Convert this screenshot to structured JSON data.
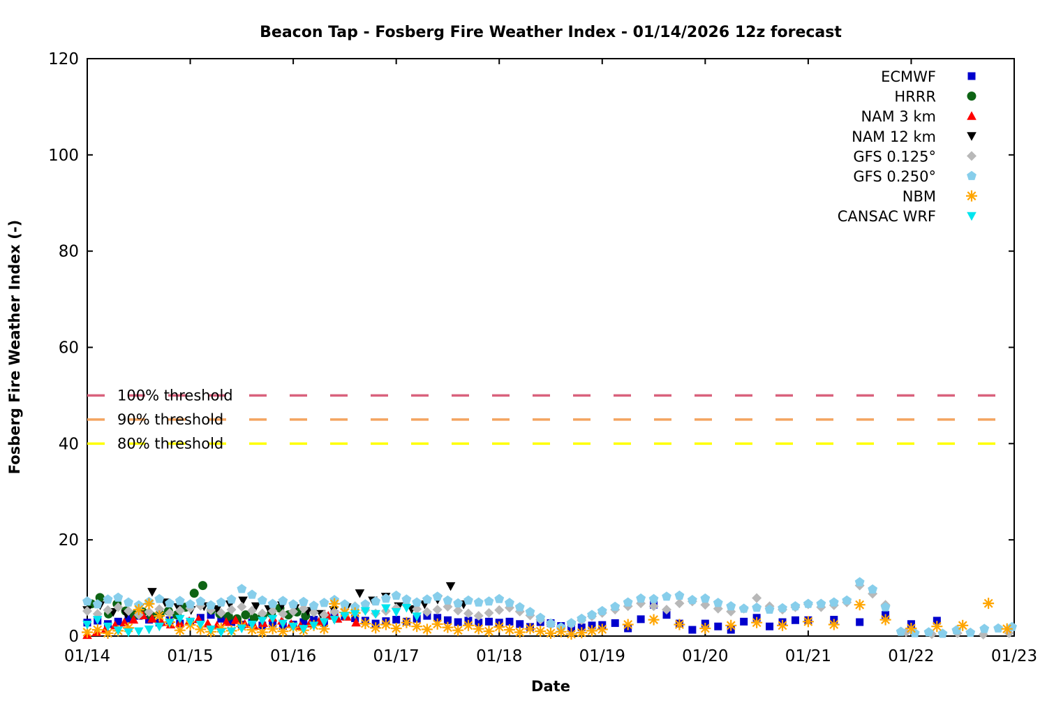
{
  "chart_data": {
    "type": "scatter",
    "title": "Beacon Tap - Fosberg Fire Weather Index - 01/14/2026 12z forecast",
    "xlabel": "Date",
    "ylabel": "Fosberg Fire Weather Index (-)",
    "x_tick_labels": [
      "01/14",
      "01/15",
      "01/16",
      "01/17",
      "01/18",
      "01/19",
      "01/20",
      "01/21",
      "01/22",
      "01/23"
    ],
    "y_tick_values": [
      0,
      20,
      40,
      60,
      80,
      100,
      120
    ],
    "xlim_days_from_0114": [
      0,
      9
    ],
    "ylim": [
      0,
      120
    ],
    "grid": false,
    "legend_position": "upper-right-inside",
    "thresholds": [
      {
        "label": "100% threshold",
        "value": 50,
        "color": "#d9627d"
      },
      {
        "label": "90% threshold",
        "value": 45,
        "color": "#f4a460"
      },
      {
        "label": "80% threshold",
        "value": 40,
        "color": "#ffff00"
      }
    ],
    "series": [
      {
        "name": "ECMWF",
        "marker": "square",
        "color": "#0000cd",
        "segments": [
          {
            "start": 0.0,
            "step": 0.1,
            "values": [
              2.8,
              3.2,
              2.5,
              3.0,
              3.6,
              4.2,
              3.4,
              2.8,
              3.3,
              2.6,
              3.0,
              3.8,
              4.4,
              3.6,
              2.9,
              2.4,
              2.8,
              2.2,
              2.6,
              2.1,
              2.4,
              2.9,
              3.4,
              2.7,
              4.6,
              4.1,
              3.7,
              3.2,
              2.6,
              3.1,
              3.4,
              3.0,
              3.6,
              4.2,
              3.8,
              3.3,
              2.9,
              3.2,
              2.8,
              3.0,
              2.8,
              3.0,
              2.5,
              1.9,
              2.9,
              2.7,
              2.1,
              1.6,
              1.8,
              2.2
            ]
          },
          {
            "start": 5.0,
            "step": 0.125,
            "values": [
              2.3,
              2.7,
              1.6,
              3.5,
              6.5,
              4.4,
              2.6,
              1.3,
              2.6,
              2.0,
              1.3,
              3.0,
              3.8,
              2.0,
              2.9,
              3.3
            ]
          },
          {
            "start": 7.0,
            "step": 0.25,
            "values": [
              3.3,
              3.4,
              2.9,
              4.4,
              2.5,
              3.2
            ]
          }
        ]
      },
      {
        "name": "HRRR",
        "marker": "circle",
        "color": "#0d6414",
        "segments": [
          {
            "start": 0.04,
            "step": 0.0832,
            "values": [
              6.7,
              8.0,
              4.6,
              6.7,
              5.2,
              4.4,
              5.0,
              4.2,
              4.6,
              5.2,
              4.4,
              6.0,
              8.9,
              10.5,
              5.4,
              4.6,
              4.1,
              3.6,
              4.4,
              3.8,
              4.2,
              4.7,
              5.8,
              4.4,
              5.0,
              4.2
            ]
          }
        ]
      },
      {
        "name": "NAM 3 km",
        "marker": "triangle-up",
        "color": "#ff0000",
        "segments": [
          {
            "start": 0.0,
            "step": 0.09,
            "values": [
              0.2,
              0.8,
              1.5,
              2.2,
              2.8,
              3.4,
              4.3,
              3.6,
              2.9,
              2.4,
              2.7,
              3.1,
              3.5,
              2.6,
              2.2,
              2.9,
              3.3,
              2.5,
              2.1,
              2.7,
              3.8,
              3.2,
              2.5,
              2.1,
              2.6,
              3.0,
              4.2,
              3.6,
              4.0,
              2.8
            ]
          }
        ]
      },
      {
        "name": "NAM 12 km",
        "marker": "triangle-down",
        "color": "#000000",
        "segments": [
          {
            "start": 0.0,
            "step": 0.126,
            "values": [
              5.4,
              6.4,
              5.0,
              4.6,
              5.8,
              9.2,
              7.0,
              6.0,
              5.4,
              6.2,
              5.6,
              6.6,
              7.4,
              6.2,
              5.6,
              6.4,
              5.8,
              5.2,
              4.6,
              5.4,
              6.0,
              8.9,
              7.4,
              8.2,
              6.2,
              5.6,
              6.6,
              7.6,
              10.4,
              6.6
            ]
          }
        ]
      },
      {
        "name": "GFS 0.125°",
        "marker": "diamond",
        "color": "#b8b8b8",
        "segments": [
          {
            "start": 0.0,
            "step": 0.1,
            "values": [
              5.2,
              4.6,
              5.4,
              6.0,
              5.2,
              4.4,
              5.0,
              5.6,
              4.8,
              5.3,
              5.8,
              6.3,
              5.4,
              4.8,
              5.5,
              6.1,
              5.3,
              4.7,
              5.2,
              4.6,
              5.1,
              5.7,
              4.9,
              4.4,
              5.0,
              5.6,
              6.2,
              5.4,
              4.7,
              5.2,
              5.8,
              6.4,
              5.6,
              5.0,
              5.5,
              6.1,
              5.3,
              4.7,
              4.2,
              4.8,
              5.4,
              5.9,
              5.1,
              4.3,
              3.4,
              2.4,
              1.7,
              2.5,
              3.3,
              4.1
            ]
          },
          {
            "start": 5.0,
            "step": 0.125,
            "values": [
              4.8,
              5.5,
              6.2,
              6.8,
              6.2,
              5.5,
              6.8,
              7.2,
              6.5,
              5.7,
              5.1,
              5.7,
              7.9,
              6.2,
              5.5,
              6.0,
              6.6,
              6.0,
              6.4,
              7.0,
              10.5,
              8.8,
              6.5
            ]
          },
          {
            "start": 7.95,
            "step": 0.25,
            "values": [
              0.8,
              0.4,
              0.6,
              0.3,
              0.6
            ]
          }
        ]
      },
      {
        "name": "GFS 0.250°",
        "marker": "pentagon",
        "color": "#87ceeb",
        "segments": [
          {
            "start": 0.0,
            "step": 0.1,
            "values": [
              7.2,
              6.6,
              7.6,
              8.0,
              7.0,
              6.4,
              7.1,
              7.7,
              6.8,
              7.3,
              6.6,
              7.2,
              6.4,
              7.0,
              7.6,
              9.8,
              8.6,
              7.4,
              6.7,
              7.3,
              6.6,
              7.1,
              6.3,
              6.9,
              7.5,
              6.6,
              6.0,
              6.6,
              7.2,
              7.8,
              8.4,
              7.6,
              7.0,
              7.6,
              8.2,
              7.4,
              6.8,
              7.4,
              7.0,
              7.2,
              7.7,
              6.9,
              6.0,
              5.0,
              3.8,
              2.6,
              1.8,
              2.7,
              3.6,
              4.4
            ]
          },
          {
            "start": 5.0,
            "step": 0.125,
            "values": [
              5.2,
              6.1,
              7.0,
              7.8,
              7.7,
              8.2,
              8.4,
              7.5,
              7.8,
              6.9,
              6.2,
              5.7,
              5.9,
              5.5,
              5.8,
              6.2,
              6.7,
              6.7,
              7.0,
              7.4,
              11.2,
              9.7,
              6.0
            ]
          },
          {
            "start": 7.9,
            "step": 0.135,
            "values": [
              0.9,
              0.6,
              0.8,
              0.5,
              1.2,
              0.7,
              1.5,
              1.6,
              1.9
            ]
          }
        ]
      },
      {
        "name": "NBM",
        "marker": "asterisk",
        "color": "#ffa500",
        "segments": [
          {
            "start": 0.0,
            "step": 0.1,
            "values": [
              0.8,
              1.3,
              0.6,
              1.1,
              1.7,
              5.5,
              6.7,
              4.2,
              2.9,
              1.2,
              2.3,
              1.4,
              0.9,
              1.6,
              1.1,
              2.0,
              1.3,
              0.8,
              1.5,
              1.0,
              1.8,
              1.2,
              2.2,
              1.5,
              6.7,
              4.9,
              4.8,
              2.6,
              1.7,
              2.4,
              1.6,
              2.8,
              2.0,
              1.4,
              2.5,
              1.8,
              1.2,
              2.2,
              1.5,
              1.0,
              1.9,
              1.3,
              0.8,
              1.5,
              1.0,
              0.6,
              0.9,
              0.4,
              0.7,
              1.1
            ]
          },
          {
            "start": 5.0,
            "step": 0.25,
            "values": [
              1.4,
              2.4,
              3.4,
              2.4,
              1.6,
              2.2,
              2.8,
              2.2,
              3.0,
              2.4,
              6.5,
              3.4,
              1.6,
              2.0,
              2.2,
              6.8
            ]
          },
          {
            "start": 8.93,
            "step": 0.1,
            "values": [
              1.5
            ]
          }
        ]
      },
      {
        "name": "CANSAC WRF",
        "marker": "triangle-down",
        "color": "#00e5ee",
        "segments": [
          {
            "start": 0.0,
            "step": 0.1,
            "values": [
              2.4,
              3.4,
              2.0,
              1.2,
              0.8,
              1.0,
              1.4,
              2.0,
              2.8,
              3.6,
              3.0,
              2.4,
              1.4,
              0.8,
              1.0,
              1.6,
              2.4,
              3.2,
              3.6,
              2.6,
              2.0,
              1.5,
              2.2,
              2.9,
              3.4,
              4.2,
              4.6,
              5.2,
              4.6,
              5.8,
              5.0,
              5.9,
              4.1
            ]
          }
        ]
      }
    ]
  }
}
